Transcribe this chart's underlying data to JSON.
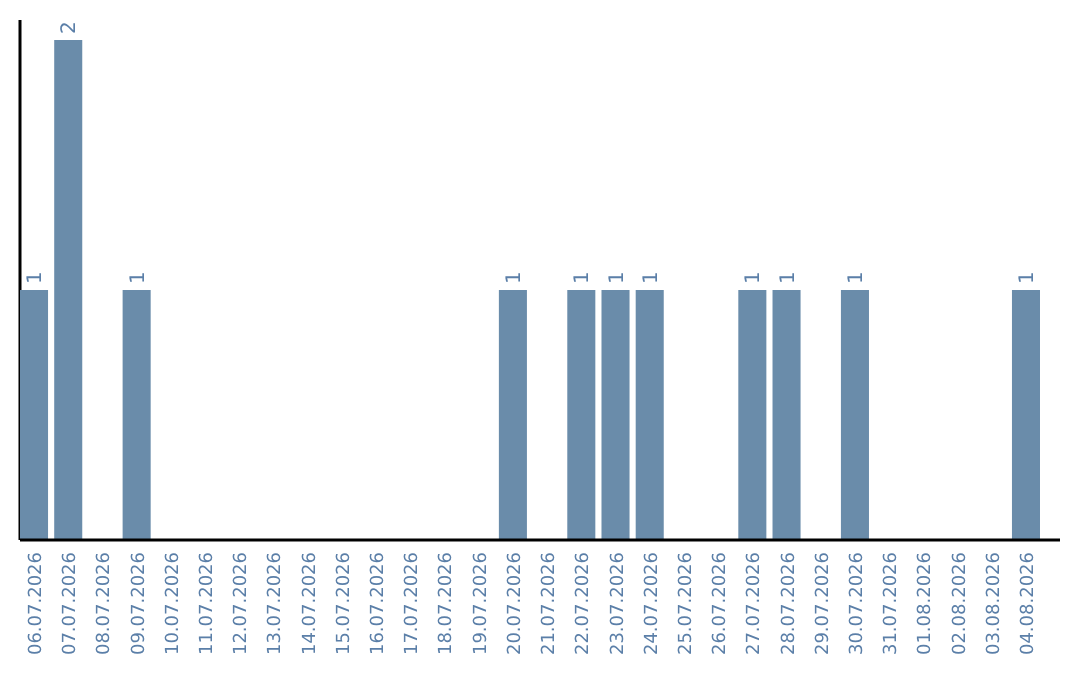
{
  "chart_data": {
    "type": "bar",
    "categories": [
      "06.07.2026",
      "07.07.2026",
      "08.07.2026",
      "09.07.2026",
      "10.07.2026",
      "11.07.2026",
      "12.07.2026",
      "13.07.2026",
      "14.07.2026",
      "15.07.2026",
      "16.07.2026",
      "17.07.2026",
      "18.07.2026",
      "19.07.2026",
      "20.07.2026",
      "21.07.2026",
      "22.07.2026",
      "23.07.2026",
      "24.07.2026",
      "25.07.2026",
      "26.07.2026",
      "27.07.2026",
      "28.07.2026",
      "29.07.2026",
      "30.07.2026",
      "31.07.2026",
      "01.08.2026",
      "02.08.2026",
      "03.08.2026",
      "04.08.2026"
    ],
    "values": [
      1,
      2,
      0,
      1,
      0,
      0,
      0,
      0,
      0,
      0,
      0,
      0,
      0,
      0,
      1,
      0,
      1,
      1,
      1,
      0,
      0,
      1,
      1,
      0,
      1,
      0,
      0,
      0,
      0,
      1
    ],
    "value_labels": [
      "1",
      "2",
      null,
      "1",
      null,
      null,
      null,
      null,
      null,
      null,
      null,
      null,
      null,
      null,
      "1",
      null,
      "1",
      "1",
      "1",
      null,
      null,
      "1",
      "1",
      null,
      "1",
      null,
      null,
      null,
      null,
      "1"
    ],
    "color": "#6a8caa"
  }
}
